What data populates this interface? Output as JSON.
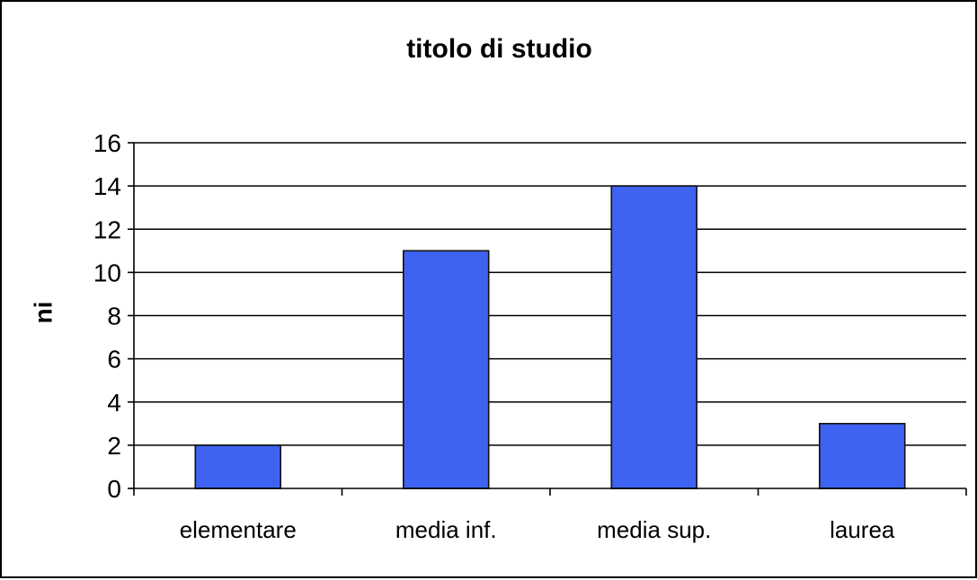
{
  "chart_data": {
    "type": "bar",
    "title": "titolo di studio",
    "xlabel": "",
    "ylabel": "ni",
    "categories": [
      "elementare",
      "media inf.",
      "media sup.",
      "laurea"
    ],
    "values": [
      2,
      11,
      14,
      3
    ],
    "ylim": [
      0,
      16
    ],
    "yticks": [
      "0",
      "2",
      "4",
      "6",
      "8",
      "10",
      "12",
      "14",
      "16"
    ],
    "grid": true,
    "legend": "none",
    "colors": {
      "bar_fill": "#3d63f0",
      "bar_stroke": "#111111",
      "grid": "#000000",
      "axis": "#000000"
    }
  }
}
